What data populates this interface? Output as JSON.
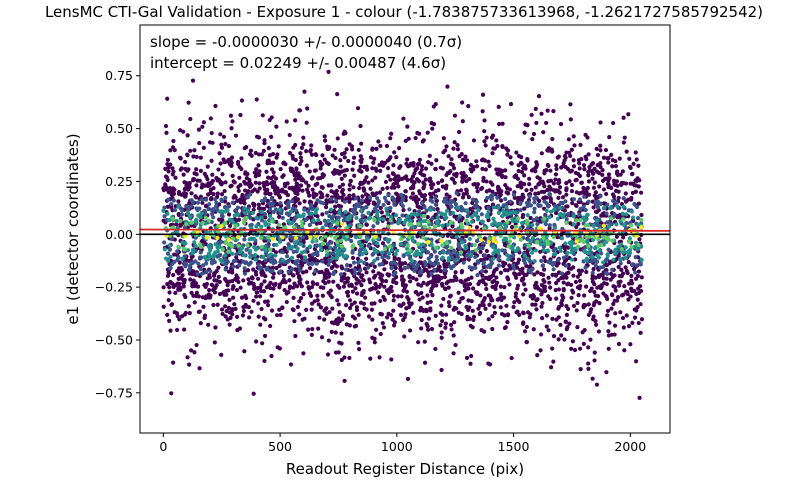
{
  "chart_data": {
    "type": "scatter",
    "title": "LensMC CTI-Gal Validation - Exposure 1 - colour (-1.783875733613968, -1.2621727585792542)",
    "xlabel": "Readout Register Distance (pix)",
    "ylabel": "e1 (detector coordinates)",
    "xlim": [
      -100,
      2170
    ],
    "ylim": [
      -0.94,
      0.99
    ],
    "xticks": [
      0,
      500,
      1000,
      1500,
      2000
    ],
    "yticks": [
      -0.75,
      -0.5,
      -0.25,
      0.0,
      0.25,
      0.5,
      0.75
    ],
    "xtick_labels": [
      "0",
      "500",
      "1000",
      "1500",
      "2000"
    ],
    "ytick_labels": [
      "−0.75",
      "−0.50",
      "−0.25",
      "0.00",
      "0.25",
      "0.50",
      "0.75"
    ],
    "grid": false,
    "annotations": [
      "slope = -0.0000030 +/- 0.0000040 (0.7σ)",
      "intercept = 0.02249 +/- 0.00487 (4.6σ)"
    ],
    "fit_line": {
      "slope": -3e-06,
      "intercept": 0.02249,
      "color": "#d62728"
    },
    "zero_line": {
      "y": 0.0,
      "color": "#000000"
    },
    "scatter": {
      "x_range": [
        0,
        2050
      ],
      "y_center": 0.0,
      "y_spread": 0.22,
      "y_extent": [
        -0.85,
        0.82
      ],
      "n_points_approx": 5000,
      "colormap": [
        "#440154",
        "#3b528b",
        "#21918c",
        "#5ec962",
        "#fde725"
      ]
    },
    "colors": {
      "fit_line": "#d62728",
      "zero_line": "#000000",
      "dominant_point": "#472d7b"
    }
  }
}
